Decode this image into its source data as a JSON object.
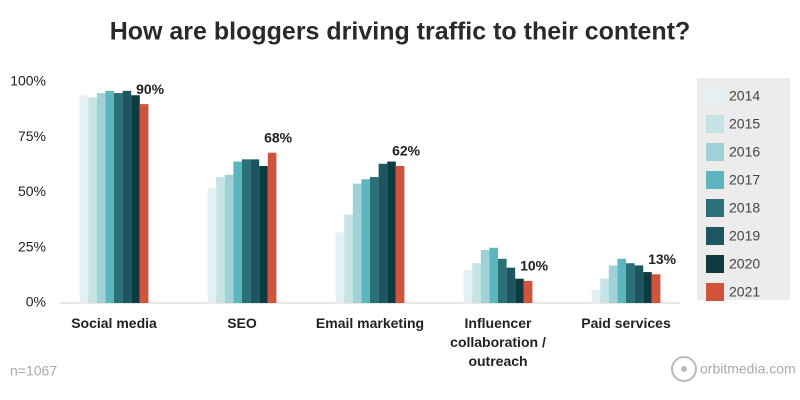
{
  "chart_data": {
    "type": "bar",
    "title": "How are bloggers driving traffic to their content?",
    "categories": [
      "Social media",
      "SEO",
      "Email marketing",
      "Influencer collaboration / outreach",
      "Paid services"
    ],
    "series": [
      {
        "name": "2014",
        "color": "#e4f1f2",
        "values": [
          94,
          52,
          32,
          15,
          6
        ]
      },
      {
        "name": "2015",
        "color": "#c6e3e6",
        "values": [
          93,
          57,
          40,
          18,
          11
        ]
      },
      {
        "name": "2016",
        "color": "#9fd1d6",
        "values": [
          95,
          58,
          54,
          24,
          17
        ]
      },
      {
        "name": "2017",
        "color": "#5db5bf",
        "values": [
          96,
          64,
          56,
          25,
          20
        ]
      },
      {
        "name": "2018",
        "color": "#2b6f78",
        "values": [
          95,
          65,
          57,
          20,
          18
        ]
      },
      {
        "name": "2019",
        "color": "#1e5660",
        "values": [
          96,
          65,
          63,
          16,
          17
        ]
      },
      {
        "name": "2020",
        "color": "#0f3a40",
        "values": [
          94,
          62,
          64,
          11,
          14
        ]
      },
      {
        "name": "2021",
        "color": "#d2533c",
        "values": [
          90,
          68,
          62,
          10,
          13
        ],
        "value_labels": [
          "90%",
          "68%",
          "62%",
          "10%",
          "13%"
        ]
      }
    ],
    "ylim": [
      0,
      100
    ],
    "yticks": [
      {
        "value": 0,
        "label": "0%"
      },
      {
        "value": 25,
        "label": "25%"
      },
      {
        "value": 50,
        "label": "50%"
      },
      {
        "value": 75,
        "label": "75%"
      },
      {
        "value": 100,
        "label": "100%"
      }
    ],
    "grid": false,
    "legend": "right",
    "annotations": [
      "n=1067",
      "orbitmedia.com"
    ]
  }
}
